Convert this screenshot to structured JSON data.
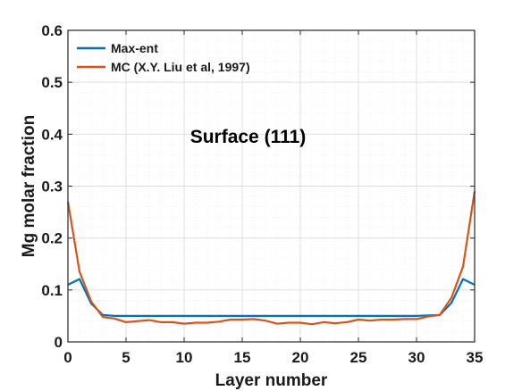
{
  "chart_data": {
    "type": "line",
    "title": "",
    "xlabel": "Layer number",
    "ylabel": "Mg molar fraction",
    "xlim": [
      0,
      35
    ],
    "ylim": [
      0,
      0.6
    ],
    "xticks": [
      0,
      5,
      10,
      15,
      20,
      25,
      30,
      35
    ],
    "yticks": [
      0,
      0.1,
      0.2,
      0.3,
      0.4,
      0.5,
      0.6
    ],
    "xtick_labels": [
      "0",
      "5",
      "10",
      "15",
      "20",
      "25",
      "30",
      "35"
    ],
    "ytick_labels": [
      "0",
      "0.1",
      "0.2",
      "0.3",
      "0.4",
      "0.5",
      "0.6"
    ],
    "grid": true,
    "legend_position": "top-left",
    "annotation": "Surface (111)",
    "series": [
      {
        "name": "Max-ent",
        "color": "#0072BD",
        "x": [
          0,
          1,
          2,
          3,
          4,
          5,
          6,
          7,
          8,
          9,
          10,
          11,
          12,
          13,
          14,
          15,
          16,
          17,
          18,
          19,
          20,
          21,
          22,
          23,
          24,
          25,
          26,
          27,
          28,
          29,
          30,
          31,
          32,
          33,
          34,
          35
        ],
        "y": [
          0.11,
          0.121,
          0.074,
          0.052,
          0.05,
          0.05,
          0.05,
          0.05,
          0.05,
          0.05,
          0.05,
          0.05,
          0.05,
          0.05,
          0.05,
          0.05,
          0.05,
          0.05,
          0.05,
          0.05,
          0.05,
          0.05,
          0.05,
          0.05,
          0.05,
          0.05,
          0.05,
          0.05,
          0.05,
          0.05,
          0.05,
          0.051,
          0.052,
          0.075,
          0.121,
          0.11
        ]
      },
      {
        "name": "MC (X.Y. Liu et al, 1997)",
        "color": "#D95319",
        "x": [
          0,
          1,
          2,
          3,
          4,
          5,
          6,
          7,
          8,
          9,
          10,
          11,
          12,
          13,
          14,
          15,
          16,
          17,
          18,
          19,
          20,
          21,
          22,
          23,
          24,
          25,
          26,
          27,
          28,
          29,
          30,
          31,
          32,
          33,
          34,
          35
        ],
        "y": [
          0.27,
          0.135,
          0.078,
          0.048,
          0.045,
          0.038,
          0.04,
          0.042,
          0.038,
          0.038,
          0.035,
          0.037,
          0.037,
          0.039,
          0.043,
          0.043,
          0.044,
          0.041,
          0.035,
          0.037,
          0.037,
          0.034,
          0.038,
          0.036,
          0.038,
          0.043,
          0.041,
          0.043,
          0.043,
          0.044,
          0.044,
          0.049,
          0.052,
          0.085,
          0.145,
          0.29
        ]
      }
    ]
  }
}
